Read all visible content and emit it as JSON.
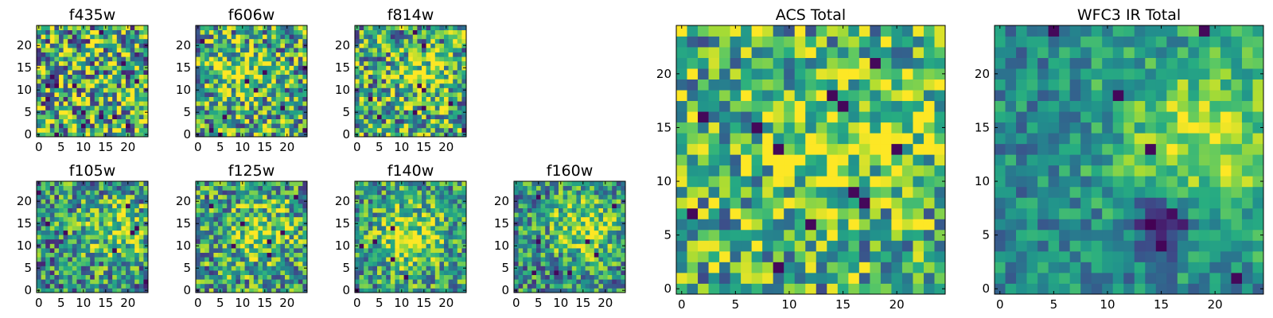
{
  "chart_data": [
    {
      "type": "heatmap",
      "title": "f435w",
      "grid_size": 25,
      "xlim": [
        0,
        24
      ],
      "ylim": [
        0,
        24
      ],
      "xticks": [
        "0",
        "5",
        "10",
        "15",
        "20"
      ],
      "yticks": [
        "0",
        "5",
        "10",
        "15",
        "20"
      ],
      "colormap": "viridis",
      "features": {
        "seed": 11,
        "blobs": [],
        "noise": 0.55,
        "base": 0.65,
        "dark_spots": 14
      }
    },
    {
      "type": "heatmap",
      "title": "f606w",
      "grid_size": 25,
      "xlim": [
        0,
        24
      ],
      "ylim": [
        0,
        24
      ],
      "xticks": [
        "0",
        "5",
        "10",
        "15",
        "20"
      ],
      "yticks": [
        "0",
        "5",
        "10",
        "15",
        "20"
      ],
      "colormap": "viridis",
      "features": {
        "seed": 23,
        "blobs": [
          [
            10,
            14,
            4,
            0.3
          ]
        ],
        "noise": 0.45,
        "base": 0.6,
        "dark_spots": 10
      }
    },
    {
      "type": "heatmap",
      "title": "f814w",
      "grid_size": 25,
      "xlim": [
        0,
        24
      ],
      "ylim": [
        0,
        24
      ],
      "xticks": [
        "0",
        "5",
        "10",
        "15",
        "20"
      ],
      "yticks": [
        "0",
        "5",
        "10",
        "15",
        "20"
      ],
      "colormap": "viridis",
      "features": {
        "seed": 37,
        "blobs": [
          [
            15,
            13,
            4,
            0.3
          ]
        ],
        "noise": 0.45,
        "base": 0.6,
        "dark_spots": 10
      }
    },
    {
      "type": "heatmap",
      "title": "f105w",
      "grid_size": 25,
      "xlim": [
        0,
        24
      ],
      "ylim": [
        0,
        24
      ],
      "xticks": [
        "0",
        "5",
        "10",
        "15",
        "20"
      ],
      "yticks": [
        "0",
        "5",
        "10",
        "15",
        "20"
      ],
      "colormap": "viridis",
      "features": {
        "seed": 41,
        "blobs": [
          [
            17,
            14,
            5,
            0.35
          ]
        ],
        "noise": 0.4,
        "base": 0.5,
        "dark_spots": 8
      }
    },
    {
      "type": "heatmap",
      "title": "f125w",
      "grid_size": 25,
      "xlim": [
        0,
        24
      ],
      "ylim": [
        0,
        24
      ],
      "xticks": [
        "0",
        "5",
        "10",
        "15",
        "20"
      ],
      "yticks": [
        "0",
        "5",
        "10",
        "15",
        "20"
      ],
      "colormap": "viridis",
      "features": {
        "seed": 53,
        "blobs": [
          [
            14,
            13,
            5,
            0.3
          ]
        ],
        "noise": 0.4,
        "base": 0.55,
        "dark_spots": 7
      }
    },
    {
      "type": "heatmap",
      "title": "f140w",
      "grid_size": 25,
      "xlim": [
        0,
        24
      ],
      "ylim": [
        0,
        24
      ],
      "xticks": [
        "0",
        "5",
        "10",
        "15",
        "20"
      ],
      "yticks": [
        "0",
        "5",
        "10",
        "15",
        "20"
      ],
      "colormap": "viridis",
      "features": {
        "seed": 67,
        "blobs": [
          [
            12,
            12,
            5,
            0.35
          ]
        ],
        "noise": 0.35,
        "base": 0.55,
        "dark_spots": 6
      }
    },
    {
      "type": "heatmap",
      "title": "f160w",
      "grid_size": 25,
      "xlim": [
        0,
        24
      ],
      "ylim": [
        0,
        24
      ],
      "xticks": [
        "0",
        "5",
        "10",
        "15",
        "20"
      ],
      "yticks": [
        "0",
        "5",
        "10",
        "15",
        "20"
      ],
      "colormap": "viridis",
      "features": {
        "seed": 79,
        "blobs": [
          [
            15,
            14,
            5,
            0.4
          ]
        ],
        "noise": 0.35,
        "base": 0.5,
        "dark_spots": 8
      }
    },
    {
      "type": "heatmap",
      "title": "ACS Total",
      "grid_size": 25,
      "xlim": [
        0,
        24
      ],
      "ylim": [
        0,
        24
      ],
      "xticks": [
        "0",
        "5",
        "10",
        "15",
        "20"
      ],
      "yticks": [
        "0",
        "5",
        "10",
        "15",
        "20"
      ],
      "colormap": "viridis",
      "features": {
        "seed": 97,
        "blobs": [
          [
            14,
            14,
            5,
            0.25
          ],
          [
            22,
            15,
            3,
            0.2
          ]
        ],
        "noise": 0.4,
        "base": 0.62,
        "dark_spots": 12
      }
    },
    {
      "type": "heatmap",
      "title": "WFC3 IR Total",
      "grid_size": 25,
      "xlim": [
        0,
        24
      ],
      "ylim": [
        0,
        24
      ],
      "xticks": [
        "0",
        "5",
        "10",
        "15",
        "20"
      ],
      "yticks": [
        "0",
        "5",
        "10",
        "15",
        "20"
      ],
      "colormap": "viridis",
      "features": {
        "seed": 101,
        "blobs": [
          [
            19,
            14,
            6,
            0.4
          ]
        ],
        "noise": 0.22,
        "base": 0.48,
        "dark_spots": 5,
        "dark_region": [
          15,
          6,
          2
        ]
      }
    }
  ]
}
